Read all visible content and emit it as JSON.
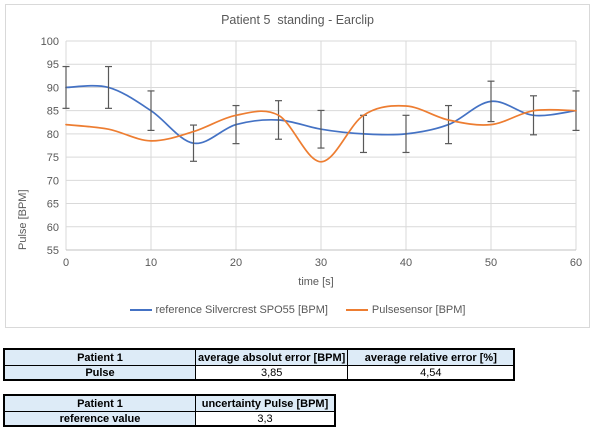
{
  "chart_data": {
    "type": "line",
    "title": "Patient 5  standing - Earclip",
    "xlabel": "time [s]",
    "ylabel": "Pulse [BPM]",
    "xlim": [
      0,
      60
    ],
    "ylim": [
      55,
      100
    ],
    "x_ticks": [
      0,
      10,
      20,
      30,
      40,
      50,
      60
    ],
    "y_ticks": [
      55,
      60,
      65,
      70,
      75,
      80,
      85,
      90,
      95,
      100
    ],
    "grid": true,
    "smooth_lines": true,
    "legend_position": "bottom",
    "x": [
      0,
      5,
      10,
      15,
      20,
      25,
      30,
      35,
      40,
      45,
      50,
      55,
      60
    ],
    "series": [
      {
        "name": "reference Silvercrest SPO55 [BPM]",
        "color": "#4472C4",
        "values": [
          90,
          90,
          85,
          78,
          82,
          83,
          81,
          80,
          80,
          82,
          87,
          84,
          85
        ],
        "error_bars_percent": 5
      },
      {
        "name": "Pulsesensor [BPM]",
        "color": "#ED7D31",
        "values": [
          82,
          81,
          78.5,
          80.5,
          84,
          84,
          74,
          84,
          86,
          83,
          82,
          85,
          85
        ]
      }
    ],
    "colors": {
      "gridline": "#D9D9D9",
      "axis_text": "#595959",
      "error_bar": "#595959",
      "table_header_fill": "#DDEBF7"
    }
  },
  "tables": [
    {
      "header": [
        "Patient 1",
        "average absolut error [BPM]",
        "average relative error [%]"
      ],
      "rows": [
        [
          "Pulse",
          "3,85",
          "4,54"
        ]
      ]
    },
    {
      "header": [
        "Patient 1",
        "uncertainty Pulse [BPM]"
      ],
      "rows": [
        [
          "reference value",
          "3,3"
        ]
      ]
    }
  ]
}
